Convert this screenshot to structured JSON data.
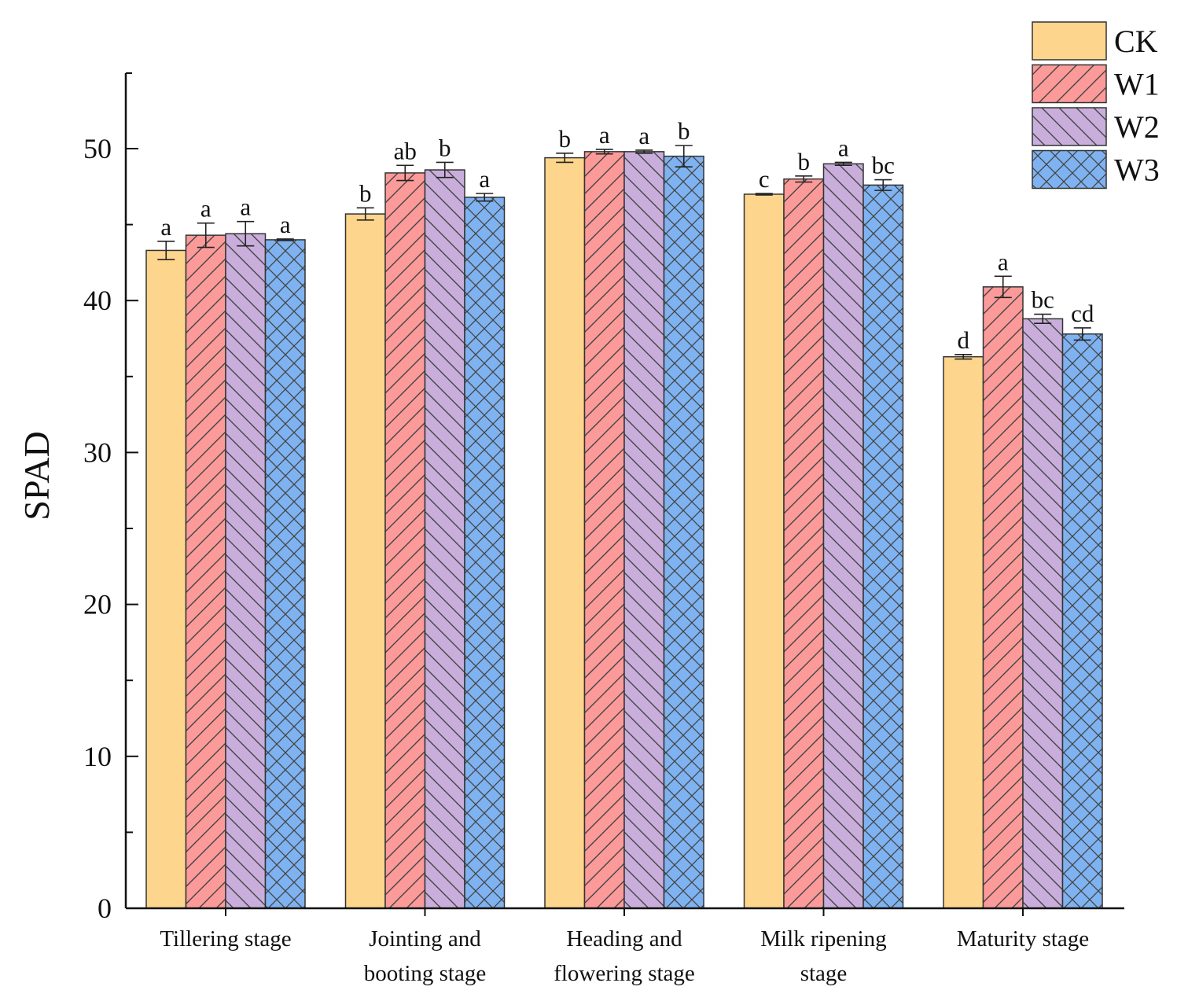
{
  "chart_data": {
    "type": "bar",
    "title": "",
    "xlabel": "",
    "ylabel": "SPAD",
    "ylim": [
      0,
      55
    ],
    "yticks": [
      0,
      10,
      20,
      30,
      40,
      50
    ],
    "yticks_label": [
      "0",
      "10",
      "20",
      "30",
      "40",
      "50"
    ],
    "grid": false,
    "legend_position": "top-right",
    "categories": [
      [
        "Tillering stage"
      ],
      [
        "Jointing and",
        "booting stage"
      ],
      [
        "Heading and",
        "flowering stage"
      ],
      [
        "Milk ripening",
        "stage"
      ],
      [
        "Maturity stage"
      ]
    ],
    "series": [
      {
        "name": "CK",
        "color": "#fdd58c",
        "pattern": "none",
        "values": [
          43.3,
          45.7,
          49.4,
          47.0,
          36.3
        ],
        "errors": [
          0.6,
          0.4,
          0.3,
          0.05,
          0.15
        ],
        "labels": [
          "a",
          "b",
          "b",
          "c",
          "d"
        ]
      },
      {
        "name": "W1",
        "color": "#fc9a9a",
        "pattern": "forward-diagonal",
        "values": [
          44.3,
          48.4,
          49.8,
          48.0,
          40.9
        ],
        "errors": [
          0.8,
          0.5,
          0.15,
          0.2,
          0.7
        ],
        "labels": [
          "a",
          "ab",
          "a",
          "b",
          "a"
        ]
      },
      {
        "name": "W2",
        "color": "#c9aedc",
        "pattern": "back-diagonal",
        "values": [
          44.4,
          48.6,
          49.8,
          49.0,
          38.8
        ],
        "errors": [
          0.8,
          0.5,
          0.1,
          0.1,
          0.3
        ],
        "labels": [
          "a",
          "b",
          "a",
          "a",
          "bc"
        ]
      },
      {
        "name": "W3",
        "color": "#7fb2f0",
        "pattern": "crosshatch",
        "values": [
          44.0,
          46.8,
          49.5,
          47.6,
          37.8
        ],
        "errors": [
          0.05,
          0.25,
          0.7,
          0.35,
          0.4
        ],
        "labels": [
          "a",
          "a",
          "b",
          "bc",
          "cd"
        ]
      }
    ]
  }
}
